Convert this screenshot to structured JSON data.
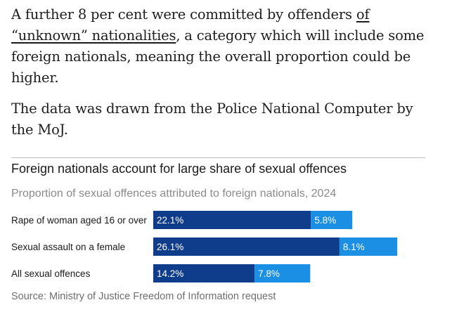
{
  "article": {
    "para1_before_link": "A further 8 per cent were committed by offenders ",
    "para1_link": "of “unknown” nationalities",
    "para1_after_link": ", a category which will include some foreign nationals, meaning the overall proportion could be higher.",
    "para2": "The data was drawn from the Police National Computer by the MoJ."
  },
  "chart_data": {
    "type": "bar",
    "stacked": true,
    "orientation": "horizontal",
    "title": "Foreign nationals account for large share of sexual offences",
    "subtitle": "Proportion of sexual offences attributed to foreign nationals, 2024",
    "categories": [
      "Rape of woman aged 16 or over",
      "Sexual assault on a female",
      "All sexual offences"
    ],
    "series": [
      {
        "values": [
          22.1,
          26.1,
          14.2
        ],
        "labels": [
          "22.1%",
          "26.1%",
          "14.2%"
        ],
        "color": "#0f3d8c"
      },
      {
        "values": [
          5.8,
          8.1,
          7.8
        ],
        "labels": [
          "5.8%",
          "8.1%",
          "7.8%"
        ],
        "color": "#1a8fe3"
      }
    ],
    "source": "Source: Ministry of Justice Freedom of Information request"
  }
}
